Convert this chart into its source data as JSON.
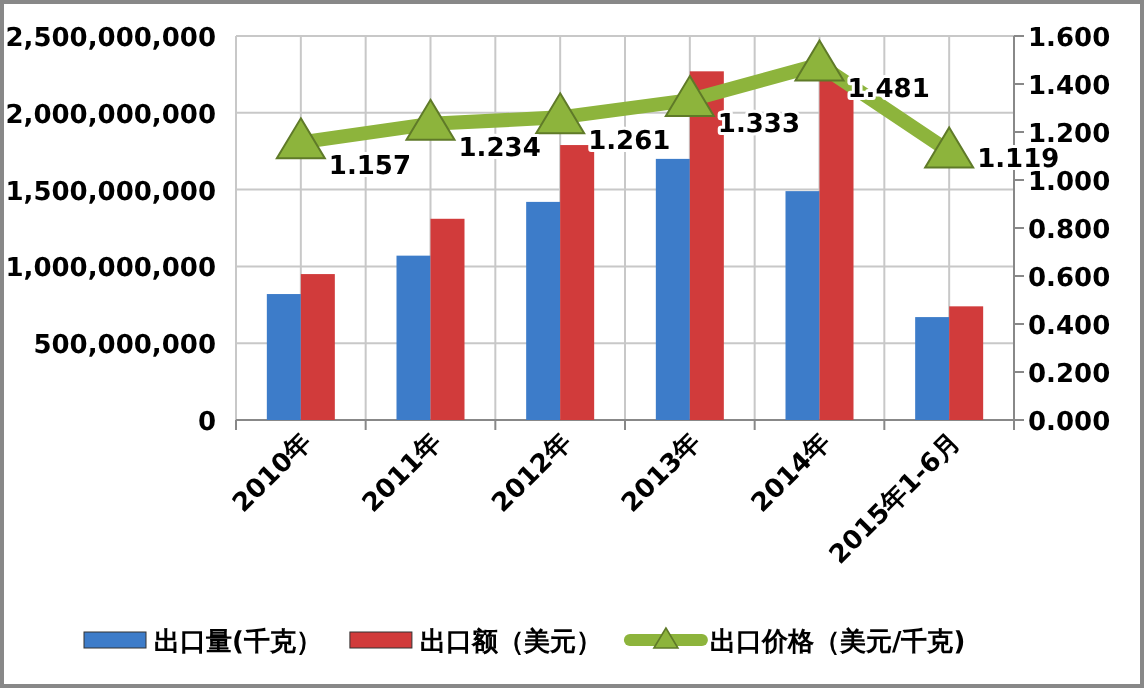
{
  "chart_data": {
    "type": "bar",
    "categories": [
      "2010年",
      "2011年",
      "2012年",
      "2013年",
      "2014年",
      "2015年1-6月"
    ],
    "series": [
      {
        "name": "出口量(千克）",
        "color": "#3d7cc9",
        "values": [
          820000000,
          1070000000,
          1420000000,
          1700000000,
          1490000000,
          670000000
        ]
      },
      {
        "name": "出口额（美元）",
        "color": "#d13b3b",
        "values": [
          950000000,
          1310000000,
          1790000000,
          2270000000,
          2210000000,
          740000000
        ]
      },
      {
        "name": "出口价格（美元/千克)",
        "type": "line",
        "axis": "y2",
        "color": "#8db43c",
        "marker": "triangle",
        "values": [
          1.157,
          1.234,
          1.261,
          1.333,
          1.481,
          1.119
        ],
        "value_labels": [
          "1.157",
          "1.234",
          "1.261",
          "1.333",
          "1.481",
          "1.119"
        ]
      }
    ],
    "ylim": [
      0,
      2500000000
    ],
    "yticks": [
      {
        "value": 0,
        "label": "0"
      },
      {
        "value": 500000000,
        "label": "500,000,000"
      },
      {
        "value": 1000000000,
        "label": "1,000,000,000"
      },
      {
        "value": 1500000000,
        "label": "1,500,000,000"
      },
      {
        "value": 2000000000,
        "label": "2,000,000,000"
      },
      {
        "value": 2500000000,
        "label": "2,500,000,000"
      }
    ],
    "y2lim": [
      0,
      1.6
    ],
    "y2ticks": [
      {
        "value": 0,
        "label": "0.000"
      },
      {
        "value": 0.2,
        "label": "0.200"
      },
      {
        "value": 0.4,
        "label": "0.400"
      },
      {
        "value": 0.6,
        "label": "0.600"
      },
      {
        "value": 0.8,
        "label": "0.800"
      },
      {
        "value": 1.0,
        "label": "1.000"
      },
      {
        "value": 1.2,
        "label": "1.200"
      },
      {
        "value": 1.4,
        "label": "1.400"
      },
      {
        "value": 1.6,
        "label": "1.600"
      }
    ],
    "grid": true,
    "legend": "bottom"
  }
}
